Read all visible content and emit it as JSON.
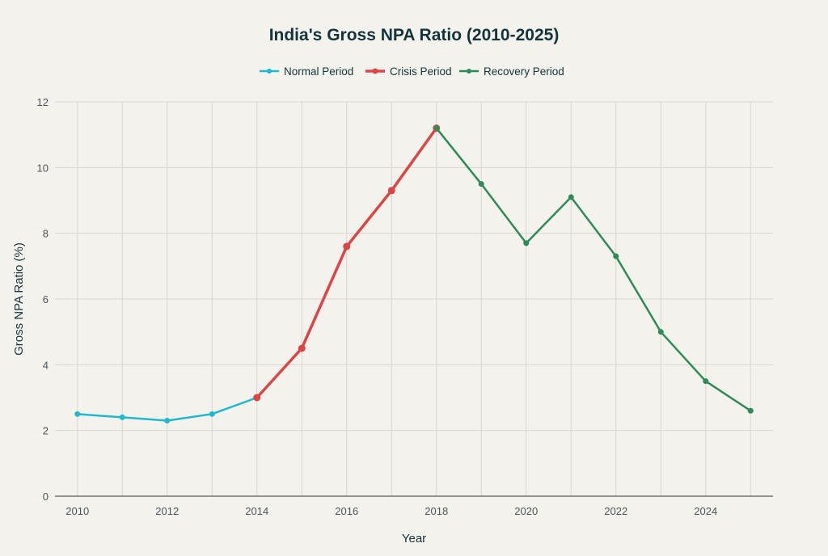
{
  "chart_data": {
    "type": "line",
    "title": "India's Gross NPA Ratio (2010-2025)",
    "xlabel": "Year",
    "ylabel": "Gross NPA Ratio (%)",
    "xlim": [
      2009.5,
      2025.5
    ],
    "ylim": [
      0,
      12
    ],
    "xticks": [
      2010,
      2012,
      2014,
      2016,
      2018,
      2020,
      2022,
      2024
    ],
    "yticks": [
      0,
      2,
      4,
      6,
      8,
      10,
      12
    ],
    "grid": true,
    "legend_placement": "top-center",
    "series": [
      {
        "name": "Normal Period",
        "color": "#1fb8cd",
        "x": [
          2010,
          2011,
          2012,
          2013,
          2014
        ],
        "y": [
          2.5,
          2.4,
          2.3,
          2.5,
          3.0
        ]
      },
      {
        "name": "Crisis Period",
        "color": "#db4545",
        "x": [
          2014,
          2015,
          2016,
          2017,
          2018
        ],
        "y": [
          3.0,
          4.5,
          7.6,
          9.3,
          11.2
        ]
      },
      {
        "name": "Recovery Period",
        "color": "#2e8b57",
        "x": [
          2018,
          2019,
          2020,
          2021,
          2022,
          2023,
          2024,
          2025
        ],
        "y": [
          11.2,
          9.5,
          7.7,
          9.1,
          7.3,
          5.0,
          3.5,
          2.6
        ]
      }
    ]
  }
}
